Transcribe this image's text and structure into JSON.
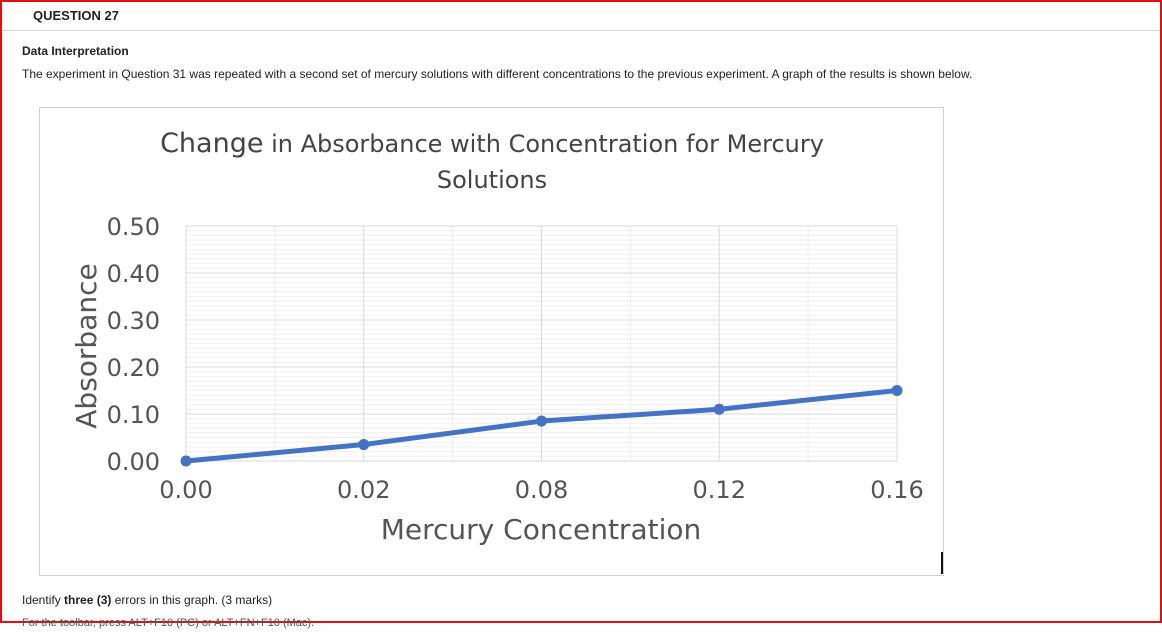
{
  "question": {
    "header": "QUESTION 27"
  },
  "section": {
    "title": "Data Interpretation",
    "intro": "The experiment in Question 31 was repeated with a second set of mercury solutions with different concentrations to the previous experiment.  A graph of the results is shown below."
  },
  "chart_data": {
    "type": "line",
    "title_word_1": "Change",
    "title_rest": " in Absorbance with Concentration for Mercury",
    "title_line2": "Solutions",
    "xlabel": "Mercury Concentration",
    "ylabel": "Absorbance",
    "categories": [
      "0.00",
      "0.02",
      "0.08",
      "0.12",
      "0.16"
    ],
    "values": [
      0.0,
      0.035,
      0.085,
      0.11,
      0.15
    ],
    "yticks": [
      "0.00",
      "0.10",
      "0.20",
      "0.30",
      "0.40",
      "0.50"
    ],
    "ylim": [
      0,
      0.5
    ],
    "grid": true,
    "series_color": "#4472c4"
  },
  "footer": {
    "prompt_pre": "Identify ",
    "prompt_bold": "three (3)",
    "prompt_post": " errors in this graph. (3 marks)",
    "cut_text": "For the toolbar, press ALT+F10 (PC) or ALT+FN+F10 (Mac)."
  }
}
